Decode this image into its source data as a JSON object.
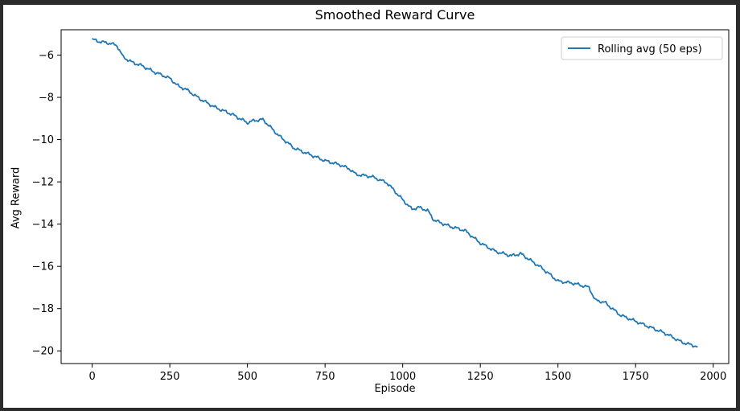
{
  "chart_data": {
    "type": "line",
    "title": "Smoothed Reward Curve",
    "xlabel": "Episode",
    "ylabel": "Avg Reward",
    "xlim": [
      -100,
      2050
    ],
    "ylim": [
      -20.6,
      -4.8
    ],
    "xticks": [
      0,
      250,
      500,
      750,
      1000,
      1250,
      1500,
      1750,
      2000
    ],
    "yticks": [
      -6,
      -8,
      -10,
      -12,
      -14,
      -16,
      -18,
      -20
    ],
    "xtick_labels": [
      "0",
      "250",
      "500",
      "750",
      "1000",
      "1250",
      "1500",
      "1750",
      "2000"
    ],
    "ytick_labels": [
      "−6",
      "−8",
      "−10",
      "−12",
      "−14",
      "−16",
      "−18",
      "−20"
    ],
    "grid": false,
    "legend_position": "top-right",
    "color": "#1f77b4",
    "series": [
      {
        "name": "Rolling avg (50 eps)",
        "x": [
          0,
          20,
          40,
          60,
          80,
          100,
          130,
          160,
          200,
          250,
          280,
          300,
          350,
          400,
          450,
          500,
          520,
          550,
          600,
          650,
          700,
          750,
          800,
          830,
          850,
          900,
          950,
          1000,
          1030,
          1050,
          1080,
          1100,
          1150,
          1200,
          1250,
          1300,
          1350,
          1380,
          1400,
          1450,
          1500,
          1550,
          1600,
          1620,
          1650,
          1700,
          1750,
          1800,
          1850,
          1900,
          1950
        ],
        "y": [
          -5.25,
          -5.35,
          -5.4,
          -5.45,
          -5.55,
          -6.1,
          -6.35,
          -6.5,
          -6.8,
          -7.1,
          -7.5,
          -7.6,
          -8.1,
          -8.5,
          -8.8,
          -9.2,
          -9.1,
          -9.05,
          -9.8,
          -10.4,
          -10.7,
          -11.0,
          -11.2,
          -11.4,
          -11.65,
          -11.75,
          -12.05,
          -12.85,
          -13.3,
          -13.2,
          -13.35,
          -13.8,
          -14.1,
          -14.3,
          -14.9,
          -15.3,
          -15.5,
          -15.4,
          -15.6,
          -16.1,
          -16.7,
          -16.8,
          -17.0,
          -17.6,
          -17.7,
          -18.3,
          -18.6,
          -18.9,
          -19.2,
          -19.6,
          -19.8
        ]
      }
    ]
  }
}
